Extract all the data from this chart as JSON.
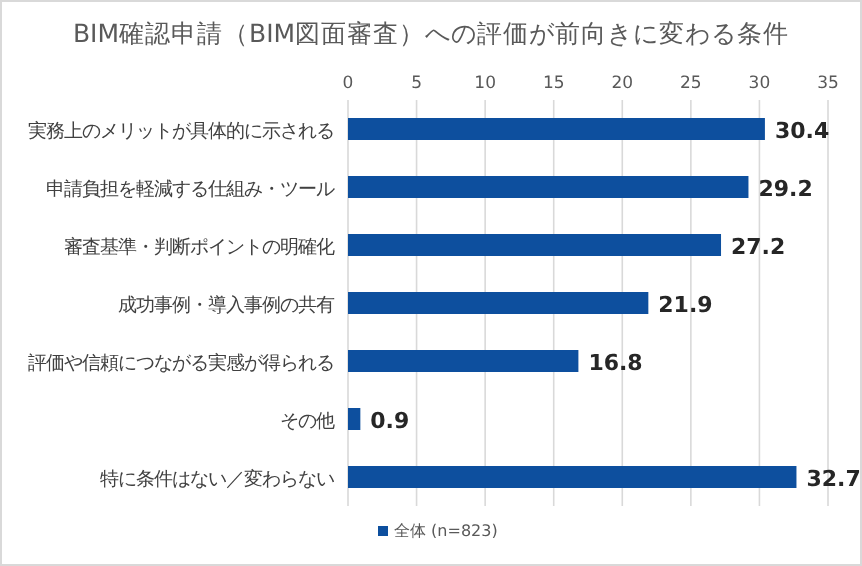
{
  "chart_data": {
    "type": "bar",
    "orientation": "horizontal",
    "title": "BIM確認申請（BIM図面審査）への評価が前向きに変わる条件",
    "categories": [
      "実務上のメリットが具体的に示される",
      "申請負担を軽減する仕組み・ツール",
      "審査基準・判断ポイントの明確化",
      "成功事例・導入事例の共有",
      "評価や信頼につながる実感が得られる",
      "その他",
      "特に条件はない／変わらない"
    ],
    "series": [
      {
        "name": "全体 (n=823)",
        "color": "#0d4f9e",
        "values": [
          30.4,
          29.2,
          27.2,
          21.9,
          16.8,
          0.9,
          32.7
        ]
      }
    ],
    "xlim": [
      0,
      35
    ],
    "xticks": [
      0,
      5,
      10,
      15,
      20,
      25,
      30,
      35
    ],
    "grid": "x",
    "data_labels": true,
    "legend": "bottom"
  }
}
